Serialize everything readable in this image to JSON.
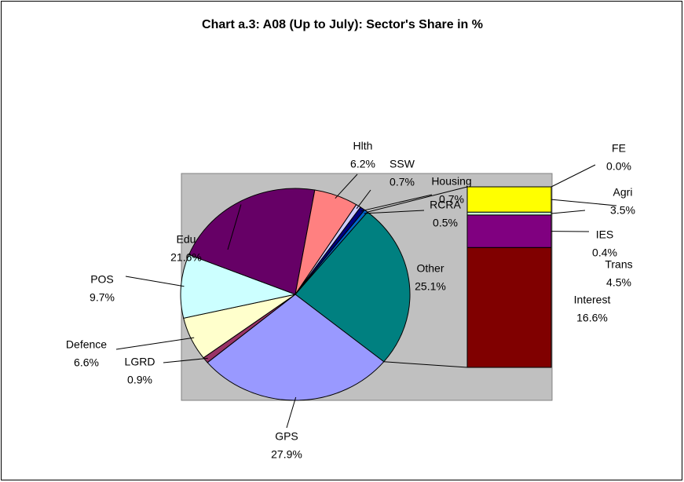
{
  "chart_data": {
    "type": "bar-of-pie",
    "title": "Chart a.3: A08 (Up to July): Sector's Share in %",
    "categories": [
      "Other",
      "GPS",
      "LGRD",
      "Defence",
      "POS",
      "Edu",
      "Hlth",
      "SSW",
      "Housing",
      "RCRA"
    ],
    "values": [
      25.1,
      27.9,
      0.9,
      6.6,
      9.7,
      21.6,
      6.2,
      0.7,
      0.7,
      0.5
    ],
    "value_labels": [
      "25.1%",
      "27.9%",
      "0.9%",
      "6.6%",
      "9.7%",
      "21.6%",
      "6.2%",
      "0.7%",
      "0.7%",
      "0.5%"
    ],
    "colors": [
      "#008080",
      "#9999ff",
      "#993366",
      "#ffffcc",
      "#ccffff",
      "#660066",
      "#ff8080",
      "#ccccff",
      "#000080",
      "#0066cc"
    ],
    "bar": {
      "categories": [
        "Interest",
        "Trans",
        "IES",
        "Agri",
        "FE"
      ],
      "values": [
        16.6,
        4.5,
        0.4,
        3.5,
        0.0
      ],
      "value_labels": [
        "16.6%",
        "4.5%",
        "0.4%",
        "3.5%",
        "0.0%"
      ],
      "colors": [
        "#800000",
        "#800080",
        "#ccffcc",
        "#ffff00",
        "#00ffff"
      ]
    }
  }
}
